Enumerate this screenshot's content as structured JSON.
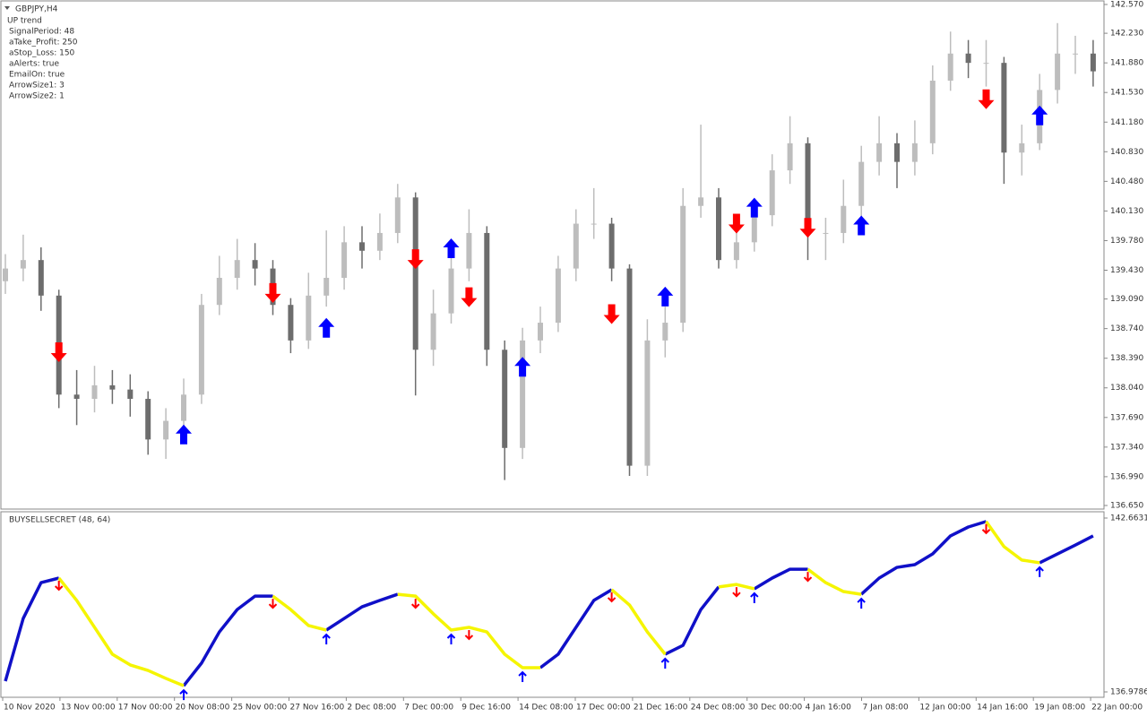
{
  "header": {
    "symbol": "GBPJPY,H4",
    "trend": "UP trend",
    "params": [
      "SignalPeriod: 48",
      "aTake_Profit: 250",
      "aStop_Loss: 150",
      "aAlerts: true",
      "EmailOn: true",
      "ArrowSize1: 3",
      "ArrowSize2: 1"
    ]
  },
  "chart_data": [
    {
      "type": "candlestick",
      "open": [
        139.3,
        139.45,
        139.55,
        139.13,
        137.96,
        137.91,
        138.07,
        138.02,
        137.91,
        137.43,
        137.65,
        137.96,
        139.02,
        139.34,
        139.55,
        139.45,
        139.02,
        138.6,
        139.13,
        139.34,
        139.76,
        139.66,
        139.87,
        140.29,
        138.49,
        138.92,
        139.45,
        139.87,
        138.49,
        137.33,
        138.6,
        138.81,
        139.45,
        139.98,
        139.98,
        139.45,
        137.12,
        138.6,
        138.81,
        140.19,
        140.29,
        139.55,
        139.76,
        140.08,
        140.61,
        140.93,
        139.87,
        139.87,
        140.19,
        140.71,
        140.93,
        140.71,
        140.93,
        141.67,
        141.99,
        141.88,
        141.88,
        140.82,
        140.93,
        141.56,
        141.99,
        141.99
      ],
      "high": [
        139.62,
        139.85,
        139.7,
        139.2,
        138.25,
        138.3,
        138.25,
        138.2,
        138.0,
        137.8,
        138.15,
        139.15,
        139.6,
        139.8,
        139.75,
        139.55,
        139.1,
        139.4,
        139.9,
        139.95,
        139.95,
        140.1,
        140.45,
        140.35,
        139.2,
        139.6,
        140.15,
        139.95,
        138.6,
        138.75,
        139.0,
        139.6,
        140.15,
        140.4,
        140.05,
        139.5,
        138.85,
        139.0,
        140.4,
        141.15,
        140.4,
        139.95,
        140.25,
        140.8,
        141.25,
        141.0,
        140.05,
        140.5,
        140.9,
        141.25,
        141.05,
        141.2,
        141.85,
        142.25,
        142.15,
        142.15,
        141.95,
        141.15,
        141.75,
        142.35,
        142.2,
        142.15
      ],
      "low": [
        139.15,
        139.3,
        138.95,
        137.8,
        137.6,
        137.75,
        137.85,
        137.7,
        137.25,
        137.2,
        137.55,
        137.85,
        138.9,
        139.2,
        139.25,
        138.9,
        138.45,
        138.5,
        139.0,
        139.2,
        139.45,
        139.55,
        139.75,
        137.95,
        138.3,
        138.8,
        139.3,
        138.3,
        136.95,
        137.2,
        138.45,
        138.7,
        139.3,
        139.8,
        139.3,
        137.0,
        137.0,
        138.4,
        138.7,
        140.05,
        139.45,
        139.45,
        139.65,
        139.95,
        140.45,
        139.55,
        139.55,
        139.75,
        140.05,
        140.55,
        140.4,
        140.55,
        140.8,
        141.55,
        141.7,
        141.6,
        140.45,
        140.55,
        140.85,
        141.4,
        141.75,
        141.6
      ],
      "close": [
        139.45,
        139.55,
        139.13,
        137.96,
        137.91,
        138.07,
        138.02,
        137.91,
        137.43,
        137.65,
        137.96,
        139.02,
        139.34,
        139.55,
        139.45,
        139.02,
        138.6,
        139.13,
        139.34,
        139.76,
        139.66,
        139.87,
        140.29,
        138.49,
        138.92,
        139.45,
        139.87,
        138.49,
        137.33,
        138.6,
        138.81,
        139.45,
        139.98,
        139.98,
        139.45,
        137.12,
        138.6,
        138.81,
        140.19,
        140.29,
        139.55,
        139.76,
        140.08,
        140.61,
        140.93,
        139.87,
        139.87,
        140.19,
        140.71,
        140.93,
        140.71,
        140.93,
        141.67,
        141.99,
        141.88,
        141.88,
        140.82,
        140.93,
        141.56,
        141.99,
        141.99,
        141.78
      ],
      "up_color": "#bdbdbd",
      "down_color": "#6d6d6d",
      "ylim": [
        136.65,
        142.57
      ],
      "yticks": [
        {
          "value": 142.57,
          "label": "142.570"
        },
        {
          "value": 142.23,
          "label": "142.230"
        },
        {
          "value": 141.88,
          "label": "141.880"
        },
        {
          "value": 141.53,
          "label": "141.530"
        },
        {
          "value": 141.18,
          "label": "141.180"
        },
        {
          "value": 140.83,
          "label": "140.830"
        },
        {
          "value": 140.48,
          "label": "140.480"
        },
        {
          "value": 140.13,
          "label": "140.130"
        },
        {
          "value": 139.78,
          "label": "139.780"
        },
        {
          "value": 139.43,
          "label": "139.430"
        },
        {
          "value": 139.09,
          "label": "139.090"
        },
        {
          "value": 138.74,
          "label": "138.740"
        },
        {
          "value": 138.39,
          "label": "138.390"
        },
        {
          "value": 138.04,
          "label": "138.040"
        },
        {
          "value": 137.69,
          "label": "137.690"
        },
        {
          "value": 137.34,
          "label": "137.340"
        },
        {
          "value": 136.99,
          "label": "136.990"
        },
        {
          "value": 136.65,
          "label": "136.650"
        }
      ],
      "signals": {
        "sell": {
          "color": "#ff0000",
          "index": [
            3,
            15,
            23,
            26,
            34,
            41,
            45,
            55
          ],
          "price": [
            138.45,
            139.15,
            139.55,
            139.1,
            138.9,
            139.97,
            139.92,
            141.44
          ]
        },
        "buy": {
          "color": "#0000ff",
          "index": [
            10,
            18,
            25,
            29,
            37,
            42,
            48,
            58
          ],
          "price": [
            137.5,
            138.76,
            139.7,
            138.3,
            139.13,
            140.18,
            139.97,
            141.27
          ]
        }
      }
    },
    {
      "type": "line",
      "title": "BUYSELLSECRET (48, 64)",
      "series": [
        {
          "color": "#1010c8",
          "values": [
            137.33,
            139.38,
            140.55,
            140.7,
            null,
            null,
            null,
            null,
            null,
            null,
            137.18,
            137.92,
            138.94,
            139.67,
            140.11,
            140.11,
            null,
            null,
            139.0,
            139.38,
            139.76,
            139.97,
            140.17,
            null,
            null,
            null,
            null,
            null,
            null,
            null,
            137.77,
            138.21,
            139.09,
            139.97,
            140.32,
            null,
            null,
            138.21,
            138.5,
            139.67,
            140.41,
            null,
            140.35,
            140.7,
            140.99,
            140.99,
            null,
            null,
            140.17,
            140.7,
            141.05,
            141.14,
            141.49,
            142.08,
            142.37,
            142.55,
            null,
            null,
            141.2,
            141.49,
            141.78,
            142.08
          ]
        },
        {
          "color": "#f5f500",
          "values": [
            null,
            null,
            null,
            140.7,
            139.97,
            139.09,
            138.21,
            137.86,
            137.68,
            137.42,
            137.18,
            null,
            null,
            null,
            null,
            140.11,
            139.67,
            139.15,
            139.0,
            null,
            null,
            null,
            140.17,
            140.11,
            139.53,
            139.0,
            139.09,
            138.94,
            138.21,
            137.77,
            137.77,
            null,
            null,
            null,
            140.32,
            139.82,
            138.94,
            138.21,
            null,
            null,
            140.41,
            140.49,
            140.35,
            null,
            null,
            140.99,
            140.55,
            140.26,
            140.17,
            null,
            null,
            null,
            null,
            null,
            null,
            142.55,
            141.73,
            141.29,
            141.2,
            null,
            null,
            null
          ]
        }
      ],
      "ylim": [
        136.9786,
        142.6631
      ],
      "yticks": [
        142.6631,
        136.9786
      ],
      "x_labels": [
        "10 Nov 2020",
        "13 Nov 00:00",
        "17 Nov 00:00",
        "20 Nov 08:00",
        "25 Nov 00:00",
        "27 Nov 16:00",
        "2 Dec 08:00",
        "7 Dec 00:00",
        "9 Dec 16:00",
        "14 Dec 08:00",
        "17 Dec 00:00",
        "21 Dec 16:00",
        "24 Dec 08:00",
        "30 Dec 00:00",
        "4 Jan 16:00",
        "7 Jan 08:00",
        "12 Jan 00:00",
        "14 Jan 16:00",
        "19 Jan 08:00",
        "22 Jan 00:00"
      ]
    }
  ]
}
